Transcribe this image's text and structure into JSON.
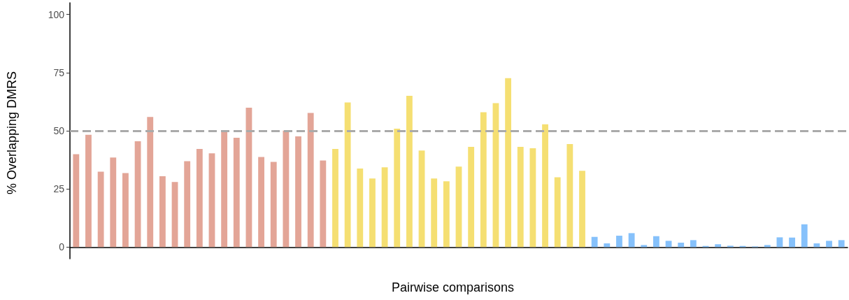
{
  "chart_data": {
    "type": "bar",
    "xlabel": "Pairwise comparisons",
    "ylabel": "% Overlapping DMRS",
    "categories": [
      null,
      null,
      null,
      null,
      null,
      null,
      null,
      null,
      null,
      null,
      null,
      null,
      null,
      null,
      null,
      null,
      null,
      null,
      null,
      null,
      null,
      null,
      null,
      null,
      null,
      null,
      null,
      null,
      null,
      null,
      null,
      null,
      null,
      null,
      null,
      null,
      null,
      null,
      null,
      null,
      null,
      null,
      null,
      null,
      null,
      null,
      null,
      null,
      null,
      null,
      null,
      null,
      null,
      null,
      null,
      null,
      null,
      null,
      null,
      null,
      null,
      null,
      null
    ],
    "values": [
      39.9,
      48.3,
      32.4,
      38.5,
      31.8,
      45.5,
      55.9,
      30.5,
      28.0,
      36.9,
      42.2,
      40.3,
      50.1,
      47.0,
      59.9,
      38.7,
      36.6,
      50.1,
      47.6,
      57.7,
      37.2,
      42.2,
      62.2,
      33.8,
      29.5,
      34.3,
      50.9,
      65.0,
      41.5,
      29.5,
      28.3,
      34.6,
      43.1,
      58.0,
      61.9,
      72.6,
      43.1,
      42.5,
      52.8,
      30.0,
      44.3,
      32.8,
      4.4,
      1.6,
      4.9,
      6.0,
      0.9,
      4.7,
      2.7,
      1.9,
      3.0,
      0.5,
      1.2,
      0.6,
      0.5,
      0.3,
      0.9,
      4.2,
      4.1,
      9.8,
      1.6,
      2.7,
      3.0
    ],
    "colors": [
      "#e3a597",
      "#e3a597",
      "#e3a597",
      "#e3a597",
      "#e3a597",
      "#e3a597",
      "#e3a597",
      "#e3a597",
      "#e3a597",
      "#e3a597",
      "#e3a597",
      "#e3a597",
      "#e3a597",
      "#e3a597",
      "#e3a597",
      "#e3a597",
      "#e3a597",
      "#e3a597",
      "#e3a597",
      "#e3a597",
      "#e3a597",
      "#f5df72",
      "#f5df72",
      "#f5df72",
      "#f5df72",
      "#f5df72",
      "#f5df72",
      "#f5df72",
      "#f5df72",
      "#f5df72",
      "#f5df72",
      "#f5df72",
      "#f5df72",
      "#f5df72",
      "#f5df72",
      "#f5df72",
      "#f5df72",
      "#f5df72",
      "#f5df72",
      "#f5df72",
      "#f5df72",
      "#f5df72",
      "#86c1fb",
      "#86c1fb",
      "#86c1fb",
      "#86c1fb",
      "#86c1fb",
      "#86c1fb",
      "#86c1fb",
      "#86c1fb",
      "#86c1fb",
      "#86c1fb",
      "#86c1fb",
      "#86c1fb",
      "#86c1fb",
      "#86c1fb",
      "#86c1fb",
      "#86c1fb",
      "#86c1fb",
      "#86c1fb",
      "#86c1fb",
      "#86c1fb",
      "#86c1fb"
    ],
    "ylim": [
      -5,
      105
    ],
    "yticks": [
      0,
      25,
      50,
      75,
      100
    ],
    "tick_labels": "y",
    "ref_lines": [
      {
        "axis": "y",
        "value": 50,
        "color": "#aaaaaa",
        "line_style": "dashed"
      }
    ]
  }
}
